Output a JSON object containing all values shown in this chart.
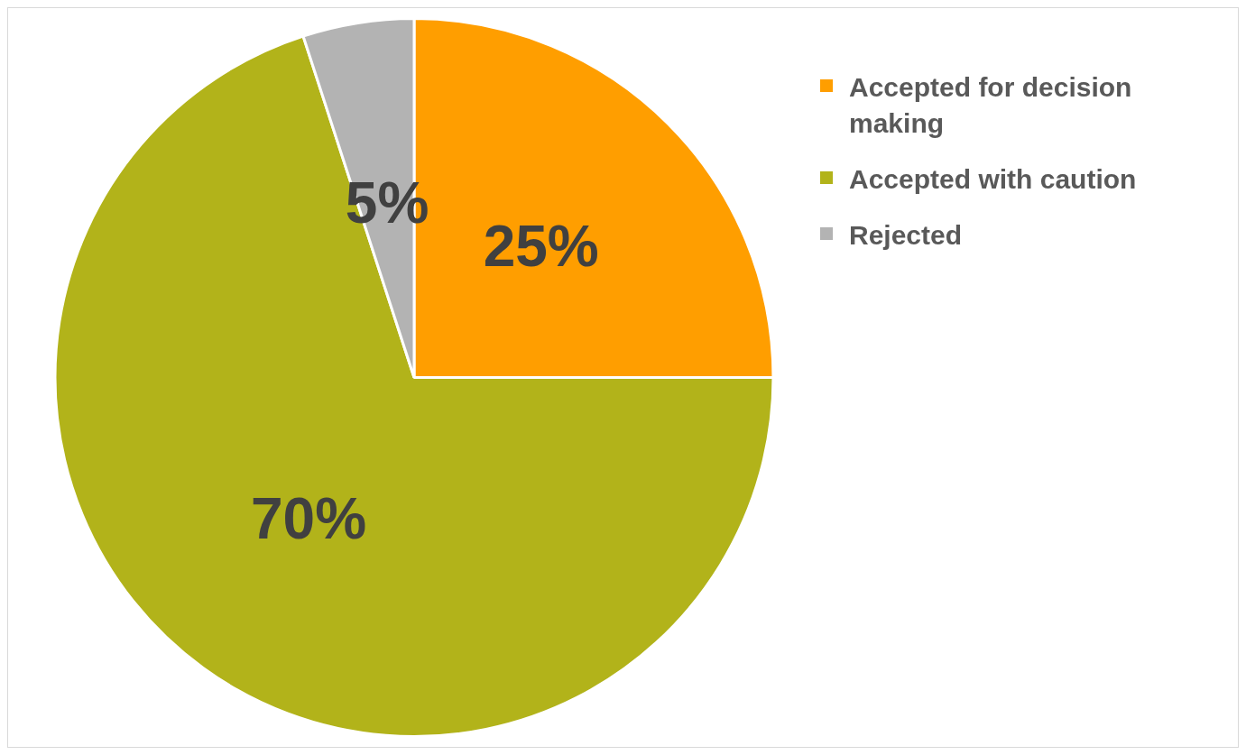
{
  "chart_data": {
    "type": "pie",
    "categories": [
      "Accepted for decision making",
      "Accepted with caution",
      "Rejected"
    ],
    "values": [
      25,
      70,
      5
    ],
    "colors": [
      "#ff9e00",
      "#b2b31a",
      "#b3b3b3"
    ],
    "value_labels": [
      "25%",
      "70%",
      "5%"
    ],
    "legend": "right"
  }
}
